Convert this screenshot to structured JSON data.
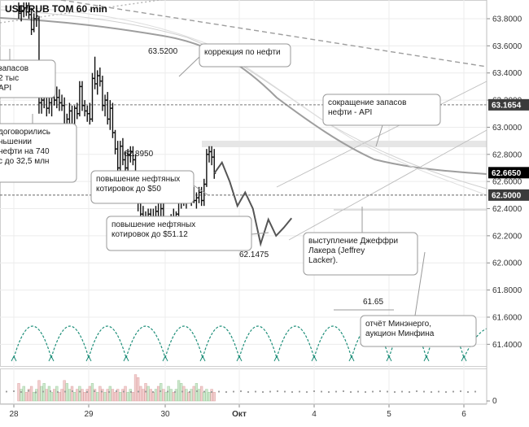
{
  "chart_data": {
    "type": "candlestick",
    "title": "USD/RUB TOM 60 min",
    "y_ticks": [
      "63.8000",
      "63.6000",
      "63.4000",
      "63.2000",
      "63.0000",
      "62.8000",
      "62.6000",
      "62.4000",
      "62.2000",
      "62.0000",
      "61.8000",
      "61.6000",
      "61.4000"
    ],
    "ylim": [
      61.26,
      63.92
    ],
    "x_ticks": [
      "28",
      "29",
      "30",
      "Окт",
      "4",
      "5",
      "6"
    ],
    "volume_ticks": [
      "0"
    ],
    "price_labels": [
      {
        "label": "63.1654",
        "value": 63.1654,
        "style": "dark"
      },
      {
        "label": "62.6650",
        "value": 62.665,
        "style": "black"
      },
      {
        "label": "62.5000",
        "value": 62.5,
        "style": "dark"
      }
    ],
    "level_labels": [
      "63.5200",
      "62.8950",
      "62.1475",
      "61.65"
    ],
    "annotations": [
      "запасов",
      "2 тыс",
      "API",
      "договорились",
      "ньшении",
      "нефти на 740",
      "с до 32,5 млн",
      "коррекция по нефти",
      "сокращение запасов",
      "нефти - API",
      "повышение нефтяных",
      "котировок до $50",
      "котировок до $51.12",
      "выступление Джеффри",
      "Лакера (Jeffrey",
      "Lacker).",
      "отчёт Минэнерго,",
      "аукцион Минфина"
    ],
    "candles": [
      {
        "o": 63.86,
        "h": 63.92,
        "l": 63.8,
        "c": 63.84
      },
      {
        "o": 63.84,
        "h": 63.9,
        "l": 63.78,
        "c": 63.86
      },
      {
        "o": 63.86,
        "h": 63.92,
        "l": 63.81,
        "c": 63.88
      },
      {
        "o": 63.88,
        "h": 63.92,
        "l": 63.82,
        "c": 63.85
      },
      {
        "o": 63.85,
        "h": 63.92,
        "l": 63.8,
        "c": 63.83
      },
      {
        "o": 63.83,
        "h": 63.88,
        "l": 63.68,
        "c": 63.72
      },
      {
        "o": 63.72,
        "h": 63.84,
        "l": 63.7,
        "c": 63.8
      },
      {
        "o": 63.8,
        "h": 63.86,
        "l": 63.74,
        "c": 63.82
      },
      {
        "o": 63.8,
        "h": 63.82,
        "l": 63.1,
        "c": 63.18
      },
      {
        "o": 63.18,
        "h": 63.3,
        "l": 63.1,
        "c": 63.2
      },
      {
        "o": 63.2,
        "h": 63.3,
        "l": 63.14,
        "c": 63.24
      },
      {
        "o": 63.24,
        "h": 63.28,
        "l": 63.08,
        "c": 63.14
      },
      {
        "o": 63.14,
        "h": 63.22,
        "l": 63.1,
        "c": 63.18
      },
      {
        "o": 63.18,
        "h": 63.24,
        "l": 63.08,
        "c": 63.22
      },
      {
        "o": 63.22,
        "h": 63.28,
        "l": 63.16,
        "c": 63.2
      },
      {
        "o": 63.2,
        "h": 63.3,
        "l": 63.14,
        "c": 63.22
      },
      {
        "o": 63.22,
        "h": 63.28,
        "l": 63.12,
        "c": 63.18
      },
      {
        "o": 63.18,
        "h": 63.24,
        "l": 63.12,
        "c": 63.16
      },
      {
        "o": 63.16,
        "h": 63.22,
        "l": 62.98,
        "c": 63.02
      },
      {
        "o": 63.02,
        "h": 63.1,
        "l": 62.94,
        "c": 63.06
      },
      {
        "o": 63.06,
        "h": 63.18,
        "l": 63.0,
        "c": 63.12
      },
      {
        "o": 63.12,
        "h": 63.16,
        "l": 62.88,
        "c": 62.92
      },
      {
        "o": 62.92,
        "h": 63.16,
        "l": 62.9,
        "c": 63.14
      },
      {
        "o": 63.14,
        "h": 63.18,
        "l": 63.06,
        "c": 63.1
      },
      {
        "o": 63.1,
        "h": 63.34,
        "l": 63.08,
        "c": 63.3
      },
      {
        "o": 63.3,
        "h": 63.34,
        "l": 63.12,
        "c": 63.16
      },
      {
        "o": 63.16,
        "h": 63.2,
        "l": 63.08,
        "c": 63.12
      },
      {
        "o": 63.12,
        "h": 63.16,
        "l": 63.04,
        "c": 63.1
      },
      {
        "o": 63.1,
        "h": 63.18,
        "l": 63.02,
        "c": 63.06
      },
      {
        "o": 63.06,
        "h": 63.4,
        "l": 63.04,
        "c": 63.36
      },
      {
        "o": 63.36,
        "h": 63.52,
        "l": 63.28,
        "c": 63.32
      },
      {
        "o": 63.32,
        "h": 63.42,
        "l": 63.24,
        "c": 63.38
      },
      {
        "o": 63.38,
        "h": 63.44,
        "l": 63.3,
        "c": 63.34
      },
      {
        "o": 63.34,
        "h": 63.38,
        "l": 63.12,
        "c": 63.16
      },
      {
        "o": 63.16,
        "h": 63.24,
        "l": 63.08,
        "c": 63.2
      },
      {
        "o": 63.2,
        "h": 63.26,
        "l": 63.02,
        "c": 63.06
      },
      {
        "o": 63.06,
        "h": 63.2,
        "l": 62.98,
        "c": 63.14
      },
      {
        "o": 63.14,
        "h": 63.18,
        "l": 62.92,
        "c": 62.96
      },
      {
        "o": 62.96,
        "h": 62.98,
        "l": 62.8,
        "c": 62.84
      },
      {
        "o": 62.84,
        "h": 62.9,
        "l": 62.66,
        "c": 62.7
      },
      {
        "o": 62.7,
        "h": 62.9,
        "l": 62.66,
        "c": 62.86
      },
      {
        "o": 62.86,
        "h": 62.92,
        "l": 62.72,
        "c": 62.76
      },
      {
        "o": 62.76,
        "h": 62.82,
        "l": 62.64,
        "c": 62.7
      },
      {
        "o": 62.7,
        "h": 62.84,
        "l": 62.68,
        "c": 62.8
      },
      {
        "o": 62.8,
        "h": 62.86,
        "l": 62.74,
        "c": 62.82
      },
      {
        "o": 62.82,
        "h": 62.86,
        "l": 62.72,
        "c": 62.76
      },
      {
        "o": 62.76,
        "h": 62.8,
        "l": 62.44,
        "c": 62.48
      },
      {
        "o": 62.48,
        "h": 62.56,
        "l": 62.38,
        "c": 62.44
      },
      {
        "o": 62.44,
        "h": 62.52,
        "l": 62.32,
        "c": 62.36
      },
      {
        "o": 62.36,
        "h": 62.42,
        "l": 62.26,
        "c": 62.3
      },
      {
        "o": 62.3,
        "h": 62.38,
        "l": 62.15,
        "c": 62.26
      },
      {
        "o": 62.26,
        "h": 62.4,
        "l": 62.22,
        "c": 62.36
      },
      {
        "o": 62.36,
        "h": 62.4,
        "l": 62.28,
        "c": 62.34
      },
      {
        "o": 62.34,
        "h": 62.4,
        "l": 62.26,
        "c": 62.3
      },
      {
        "o": 62.3,
        "h": 62.42,
        "l": 62.28,
        "c": 62.38
      },
      {
        "o": 62.38,
        "h": 62.54,
        "l": 62.28,
        "c": 62.32
      },
      {
        "o": 62.32,
        "h": 62.44,
        "l": 62.28,
        "c": 62.4
      },
      {
        "o": 62.4,
        "h": 62.44,
        "l": 62.18,
        "c": 62.22
      },
      {
        "o": 62.22,
        "h": 62.3,
        "l": 62.18,
        "c": 62.26
      },
      {
        "o": 62.26,
        "h": 62.34,
        "l": 62.22,
        "c": 62.28
      },
      {
        "o": 62.28,
        "h": 62.36,
        "l": 62.24,
        "c": 62.34
      },
      {
        "o": 62.34,
        "h": 62.4,
        "l": 62.28,
        "c": 62.32
      },
      {
        "o": 62.32,
        "h": 62.38,
        "l": 62.26,
        "c": 62.36
      },
      {
        "o": 62.36,
        "h": 62.52,
        "l": 62.34,
        "c": 62.48
      },
      {
        "o": 62.48,
        "h": 62.54,
        "l": 62.4,
        "c": 62.5
      },
      {
        "o": 62.5,
        "h": 62.56,
        "l": 62.42,
        "c": 62.46
      },
      {
        "o": 62.46,
        "h": 62.54,
        "l": 62.4,
        "c": 62.52
      },
      {
        "o": 62.52,
        "h": 62.56,
        "l": 62.44,
        "c": 62.48
      },
      {
        "o": 62.48,
        "h": 62.54,
        "l": 62.42,
        "c": 62.5
      },
      {
        "o": 62.5,
        "h": 62.56,
        "l": 62.44,
        "c": 62.46
      },
      {
        "o": 62.46,
        "h": 62.52,
        "l": 62.4,
        "c": 62.48
      },
      {
        "o": 62.48,
        "h": 62.56,
        "l": 62.44,
        "c": 62.52
      },
      {
        "o": 62.52,
        "h": 62.56,
        "l": 62.42,
        "c": 62.46
      },
      {
        "o": 62.46,
        "h": 62.62,
        "l": 62.42,
        "c": 62.58
      },
      {
        "o": 62.58,
        "h": 62.84,
        "l": 62.56,
        "c": 62.8
      },
      {
        "o": 62.8,
        "h": 62.86,
        "l": 62.74,
        "c": 62.82
      },
      {
        "o": 62.82,
        "h": 62.86,
        "l": 62.72,
        "c": 62.78
      },
      {
        "o": 62.78,
        "h": 62.84,
        "l": 62.62,
        "c": 62.66
      }
    ],
    "volume": [
      6,
      4,
      5,
      3,
      4,
      5,
      3,
      4,
      7,
      5,
      6,
      4,
      5,
      3,
      4,
      5,
      3,
      4,
      7,
      6,
      4,
      5,
      3,
      4,
      5,
      4,
      3,
      4,
      5,
      6,
      4,
      3,
      5,
      4,
      3,
      4,
      5,
      4,
      3,
      4,
      3,
      4,
      5,
      3,
      4,
      3,
      9,
      8,
      5,
      4,
      6,
      5,
      4,
      3,
      4,
      5,
      6,
      4,
      3,
      5,
      4,
      3,
      4,
      7,
      6,
      5,
      4,
      3,
      4,
      5,
      6,
      4,
      5,
      3,
      4,
      3,
      4,
      3
    ],
    "projection": [
      [
        62.66,
        0
      ],
      [
        62.74,
        1
      ],
      [
        62.6,
        2
      ],
      [
        62.42,
        3
      ],
      [
        62.52,
        4
      ],
      [
        62.4,
        5
      ],
      [
        62.14,
        6
      ],
      [
        62.32,
        7
      ],
      [
        62.2,
        8
      ],
      [
        62.26,
        9
      ],
      [
        62.33,
        10
      ]
    ],
    "volume_dots": [
      5,
      6,
      4,
      7,
      3,
      5,
      6,
      4,
      5,
      6,
      5,
      4,
      6,
      5,
      4,
      6,
      5,
      4,
      5,
      5,
      4,
      6,
      5,
      4,
      5,
      4,
      6,
      5,
      4,
      5,
      4,
      5,
      6,
      4,
      5,
      4,
      5,
      6,
      5,
      4,
      5,
      4,
      6,
      5,
      4,
      5,
      6,
      4,
      5,
      4,
      5,
      6,
      5,
      4,
      5,
      4,
      6,
      5,
      4,
      5,
      4,
      5,
      6,
      4,
      5
    ]
  }
}
